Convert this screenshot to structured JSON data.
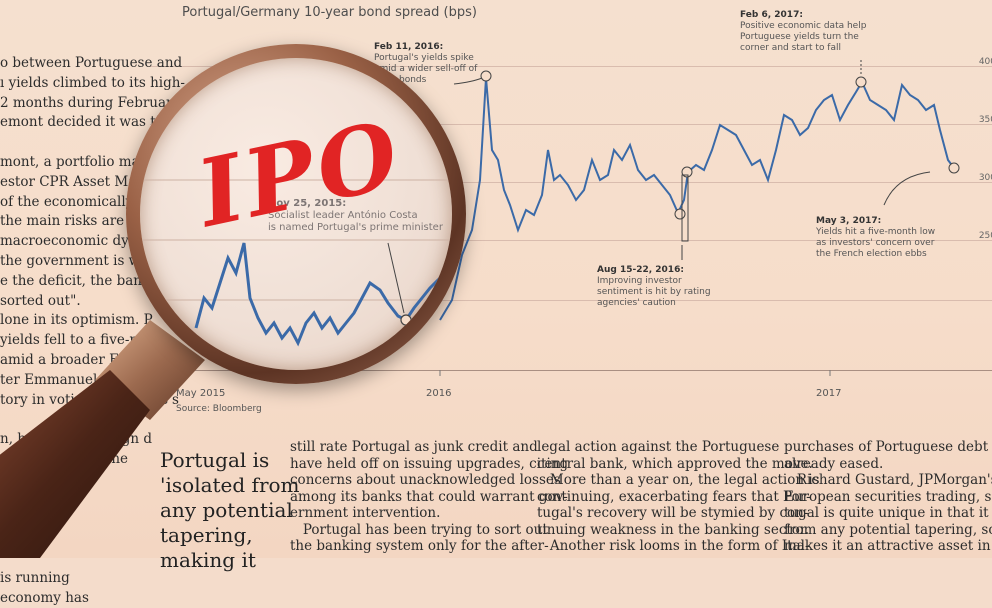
{
  "chart": {
    "title": "Portugal/Germany 10-year bond spread (bps)",
    "y_ticks": [
      "400",
      "350",
      "300",
      "250"
    ],
    "x_ticks": [
      "May 2015",
      "2016",
      "2017"
    ],
    "source": "Source: Bloomberg"
  },
  "annotations": {
    "feb2016_head": "Feb 11, 2016:",
    "feb2016_body": [
      "Portugal's yields spike",
      "amid a wider sell-off of",
      "bank bonds"
    ],
    "feb2017_head": "Feb 6, 2017:",
    "feb2017_body": [
      "Positive economic data help",
      "Portuguese yields turn the",
      "corner and start to fall"
    ],
    "aug2016_head": "Aug 15-22, 2016:",
    "aug2016_body": [
      "Improving investor",
      "sentiment is hit by rating",
      "agencies' caution"
    ],
    "may2017_head": "May 3, 2017:",
    "may2017_body": [
      "Yields hit a five-month low",
      "as investors' concern over",
      "the French election ebbs"
    ],
    "nov2015_head": "Nov 25, 2015:",
    "nov2015_body": [
      "Socialist leader António Costa",
      "is named Portugal's prime minister"
    ]
  },
  "handwriting": "IPO",
  "left_column": [
    "o between Portuguese and",
    "ı yields climbed to its high-",
    "2 months during February,",
    "emont decided it was time",
    "",
    "mont, a portfolio manag",
    "estor CPR Asset Manag",
    "of the economically fra",
    "the main risks are belt",
    "macroeconomic dyna",
    "the government is w",
    "e the deficit, the bank",
    "sorted out\".",
    "lone in its optimism. P",
    "yields fell to a five-month",
    "amid a broader European",
    "ter Emmanuel Macron's",
    "tory in voting for France's",
    "",
    "n, head of sovereign d",
    "Citi, points out the",
    "nomy has",
    "",
    "",
    "es",
    "",
    "is running",
    "economy has"
  ],
  "headline": [
    "Portugal is",
    "'isolated from",
    "any potential",
    "tapering,",
    "making it"
  ],
  "column_2": [
    "still rate Portugal as junk credit and",
    "have held off on issuing upgrades, citing",
    "concerns about unacknowledged losses",
    "among its banks that could warrant gov-",
    "ernment intervention.",
    "   Portugal has been trying to sort out",
    "the banking system only for the after-"
  ],
  "column_3": [
    "legal action against the Portuguese",
    "central bank, which approved the move.",
    "   More than a year on, the legal action is",
    "continuing, exacerbating fears that Por-",
    "tugal's recovery will be stymied by con-",
    "tinuing weakness in the banking sector.",
    "   Another risk looms in the form of Ital-"
  ],
  "column_4": [
    "purchases of Portuguese debt ha",
    "already eased.",
    "   Richard Gustard, JPMorgan's head",
    "European securities trading, says: \"F",
    "tugal is quite unique in that it is isola",
    "from any potential tapering, so t",
    "makes it an attractive asset in a risk"
  ]
}
